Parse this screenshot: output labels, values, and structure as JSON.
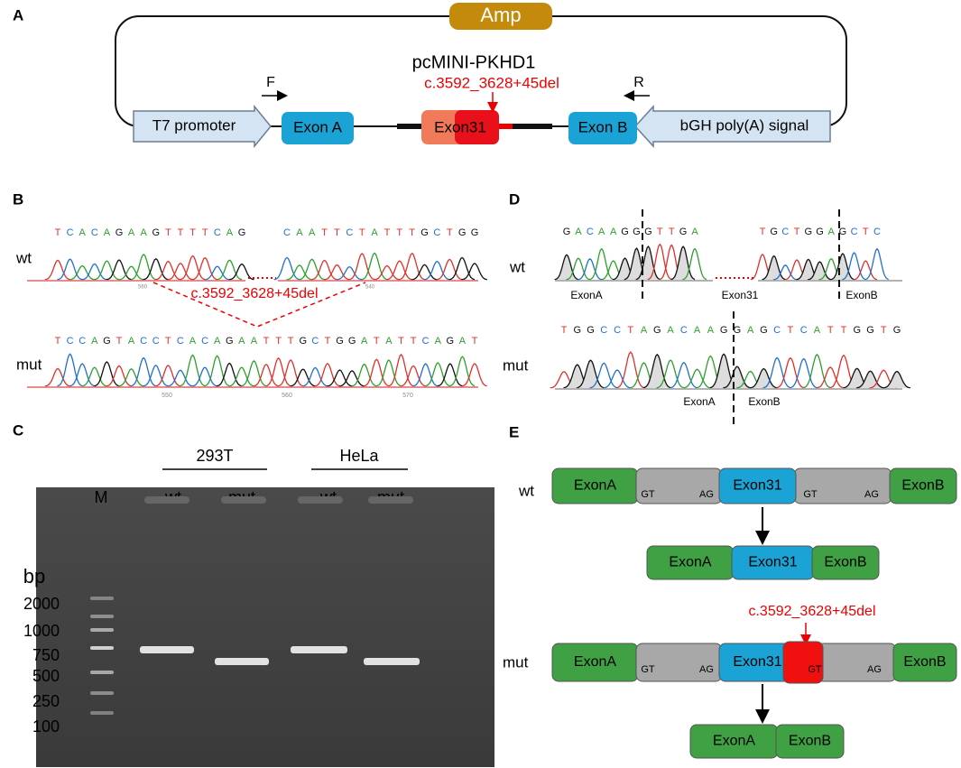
{
  "panels": {
    "a": "A",
    "b": "B",
    "c": "C",
    "d": "D",
    "e": "E"
  },
  "plasmid": {
    "title": "pcMINI-PKHD1",
    "amp": "Amp",
    "mutation": "c.3592_3628+45del",
    "forward": "F",
    "reverse": "R",
    "t7": "T7 promoter",
    "exon_a": "Exon A",
    "exon31": "Exon31",
    "exon_b": "Exon B",
    "bgh": "bGH poly(A) signal"
  },
  "panel_b": {
    "wt": "wt",
    "mut": "mut",
    "deletion": "c.3592_3628+45del",
    "wt_seq_left": [
      "T",
      "C",
      "A",
      "C",
      "A",
      "G",
      "A",
      "A",
      "G",
      "T",
      "T",
      "T",
      "T",
      "C",
      "A",
      "G"
    ],
    "wt_seq_right": [
      "C",
      "A",
      "A",
      "T",
      "T",
      "C",
      "T",
      "A",
      "T",
      "T",
      "T",
      "G",
      "C",
      "T",
      "G",
      "G"
    ],
    "mut_seq": [
      "T",
      "C",
      "C",
      "A",
      "G",
      "T",
      "A",
      "C",
      "C",
      "T",
      "C",
      "A",
      "C",
      "A",
      "G",
      "A",
      "A",
      "T",
      "T",
      "T",
      "G",
      "C",
      "T",
      "G",
      "G",
      "A",
      "T",
      "A",
      "T",
      "T",
      "C",
      "A",
      "G",
      "A",
      "T"
    ],
    "wt_ticks": [
      "560",
      "540"
    ],
    "mut_ticks": [
      "550",
      "560",
      "570"
    ]
  },
  "panel_c": {
    "cells": [
      "293T",
      "HeLa"
    ],
    "lanes": [
      "M",
      "wt",
      "mut",
      "wt",
      "mut"
    ],
    "unit": "bp",
    "ladder": [
      "2000",
      "1000",
      "750",
      "500",
      "250",
      "100"
    ]
  },
  "panel_d": {
    "wt": "wt",
    "mut": "mut",
    "wt_seq_left": [
      "G",
      "A",
      "C",
      "A",
      "A",
      "G",
      "G",
      "G",
      "T",
      "T",
      "G",
      "A"
    ],
    "wt_seq_right": [
      "T",
      "G",
      "C",
      "T",
      "G",
      "G",
      "A",
      "G",
      "C",
      "T",
      "C"
    ],
    "mut_seq": [
      "T",
      "G",
      "G",
      "C",
      "C",
      "T",
      "A",
      "G",
      "A",
      "C",
      "A",
      "A",
      "G",
      "G",
      "A",
      "G",
      "C",
      "T",
      "C",
      "A",
      "T",
      "T",
      "G",
      "G",
      "T",
      "G"
    ],
    "wt_labels": [
      "ExonA",
      "Exon31",
      "ExonB"
    ],
    "mut_labels": [
      "ExonA",
      "ExonB"
    ]
  },
  "panel_e": {
    "wt": "wt",
    "mut": "mut",
    "mutation": "c.3592_3628+45del",
    "wt_row": {
      "exon_a": "ExonA",
      "gt1": "GT",
      "ag1": "AG",
      "exon31": "Exon31",
      "gt2": "GT",
      "ag2": "AG",
      "exon_b": "ExonB"
    },
    "wt_spliced": {
      "exon_a": "ExonA",
      "exon31": "Exon31",
      "exon_b": "ExonB"
    },
    "mut_row": {
      "exon_a": "ExonA",
      "gt1": "GT",
      "ag1": "AG",
      "exon31": "Exon31",
      "gt2": "GT",
      "ag2": "AG",
      "exon_b": "ExonB"
    },
    "mut_spliced": {
      "exon_a": "ExonA",
      "exon_b": "ExonB"
    }
  }
}
